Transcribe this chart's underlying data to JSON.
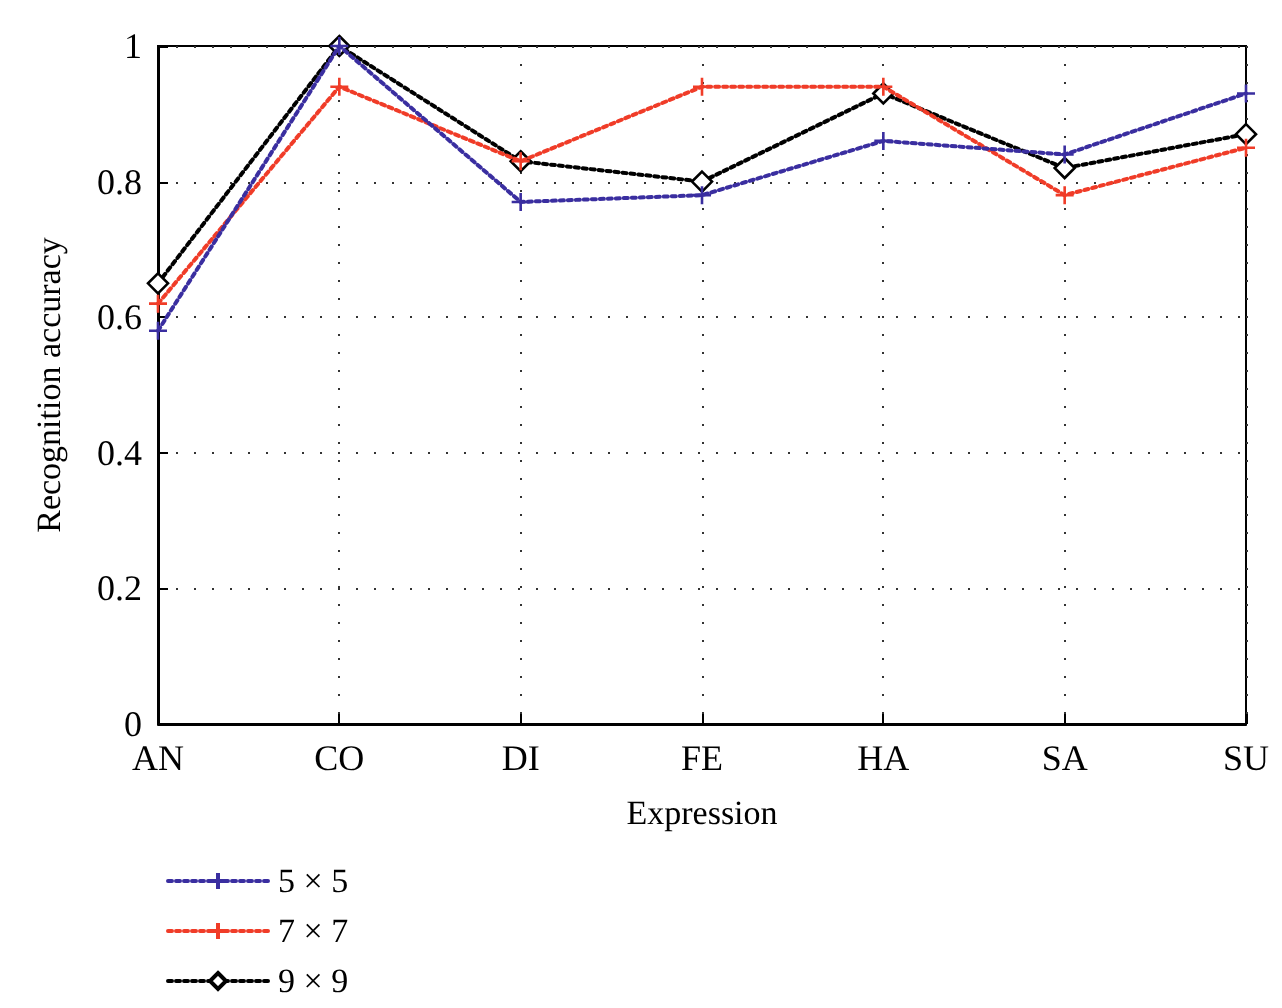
{
  "chart_data": {
    "type": "line",
    "xlabel": "Expression",
    "ylabel": "Recognition accuracy",
    "categories": [
      "AN",
      "CO",
      "DI",
      "FE",
      "HA",
      "SA",
      "SU"
    ],
    "series": [
      {
        "name": "5 × 5",
        "color": "#3a2ea0",
        "marker": "cross",
        "values": [
          0.58,
          1.0,
          0.77,
          0.78,
          0.86,
          0.84,
          0.93
        ]
      },
      {
        "name": "7 × 7",
        "color": "#f03c28",
        "marker": "cross",
        "values": [
          0.62,
          0.94,
          0.83,
          0.94,
          0.94,
          0.78,
          0.85
        ]
      },
      {
        "name": "9 × 9",
        "color": "#000000",
        "marker": "diamond",
        "values": [
          0.65,
          1.0,
          0.83,
          0.8,
          0.93,
          0.82,
          0.87
        ]
      }
    ],
    "ylim": [
      0,
      1
    ],
    "yticks": [
      0,
      0.2,
      0.4,
      0.6,
      0.8,
      1
    ],
    "grid": true,
    "legend": "bottom left",
    "line_style": "dotted"
  }
}
